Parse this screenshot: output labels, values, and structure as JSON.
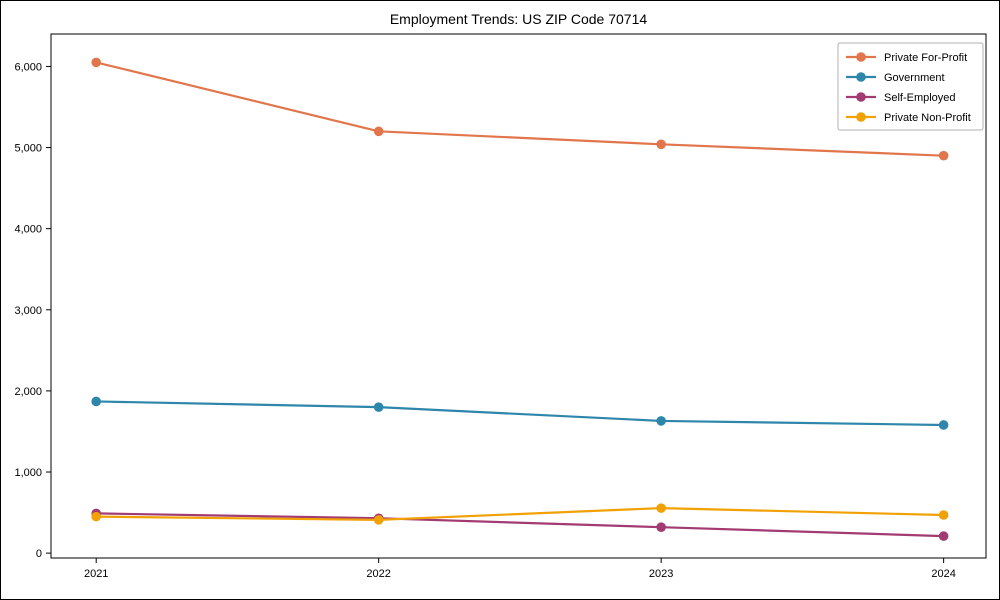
{
  "figure": {
    "kind": "matplotlib-style line chart"
  },
  "chart_data": {
    "type": "line",
    "title": "Employment Trends: US ZIP Code 70714",
    "xlabel": "",
    "ylabel": "",
    "x": [
      2021,
      2022,
      2023,
      2024
    ],
    "xtick_labels": [
      "2021",
      "2022",
      "2023",
      "2024"
    ],
    "yticks": [
      0,
      1000,
      2000,
      3000,
      4000,
      5000,
      6000
    ],
    "ytick_labels": [
      "0",
      "1,000",
      "2,000",
      "3,000",
      "4,000",
      "5,000",
      "6,000"
    ],
    "xlim": [
      2020.84,
      2024.15
    ],
    "ylim": [
      -60,
      6400
    ],
    "grid": false,
    "legend_position": "upper right",
    "marker": "circle",
    "axis_color": "#000000",
    "legend_border_color": "#b0b0b0",
    "series": [
      {
        "name": "Private For-Profit",
        "color": "#E1764C",
        "values": [
          6050,
          5200,
          5040,
          4900
        ]
      },
      {
        "name": "Government",
        "color": "#2E86AB",
        "values": [
          1870,
          1800,
          1630,
          1580
        ]
      },
      {
        "name": "Self-Employed",
        "color": "#A23B72",
        "values": [
          490,
          430,
          320,
          210
        ]
      },
      {
        "name": "Private Non-Profit",
        "color": "#F2A104",
        "values": [
          450,
          410,
          555,
          470
        ]
      }
    ]
  }
}
